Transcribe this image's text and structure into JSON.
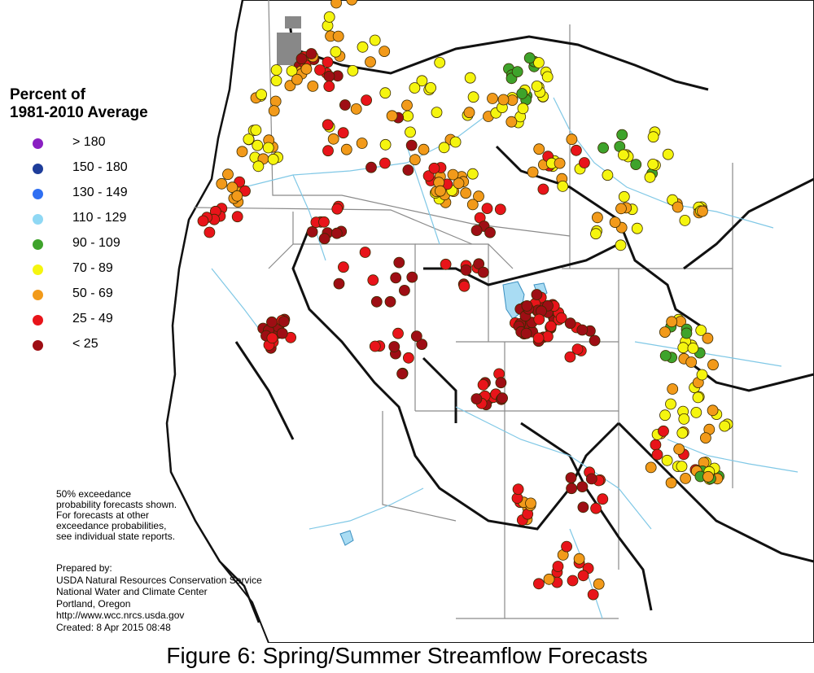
{
  "legend": {
    "title": "Percent of\n1981-2010 Average",
    "items": [
      {
        "label": "> 180",
        "color": "#8a1fc2"
      },
      {
        "label": "150 - 180",
        "color": "#1e3d9a"
      },
      {
        "label": "130 - 149",
        "color": "#2f6ff2"
      },
      {
        "label": "110 - 129",
        "color": "#8fd8f4"
      },
      {
        "label": "90 - 109",
        "color": "#3ea32b"
      },
      {
        "label": "70 - 89",
        "color": "#f5f50f"
      },
      {
        "label": "50 - 69",
        "color": "#f29a1a"
      },
      {
        "label": "25 - 49",
        "color": "#e8141a"
      },
      {
        "label": "< 25",
        "color": "#9e0e14"
      }
    ]
  },
  "note": {
    "lines": [
      "50% exceedance",
      "probability forecasts shown.",
      "For forecasts at other",
      "exceedance probabilities,",
      "see individual state reports."
    ]
  },
  "prepared": {
    "lines": [
      "Prepared by:",
      "USDA Natural Resources Conservation Service",
      "National Water and Climate Center",
      "Portland, Oregon",
      "http://www.wcc.nrcs.usda.gov",
      "Created:   8 Apr 2015   08:48"
    ]
  },
  "caption": "Figure 6: Spring/Summer Streamflow Forecasts"
}
